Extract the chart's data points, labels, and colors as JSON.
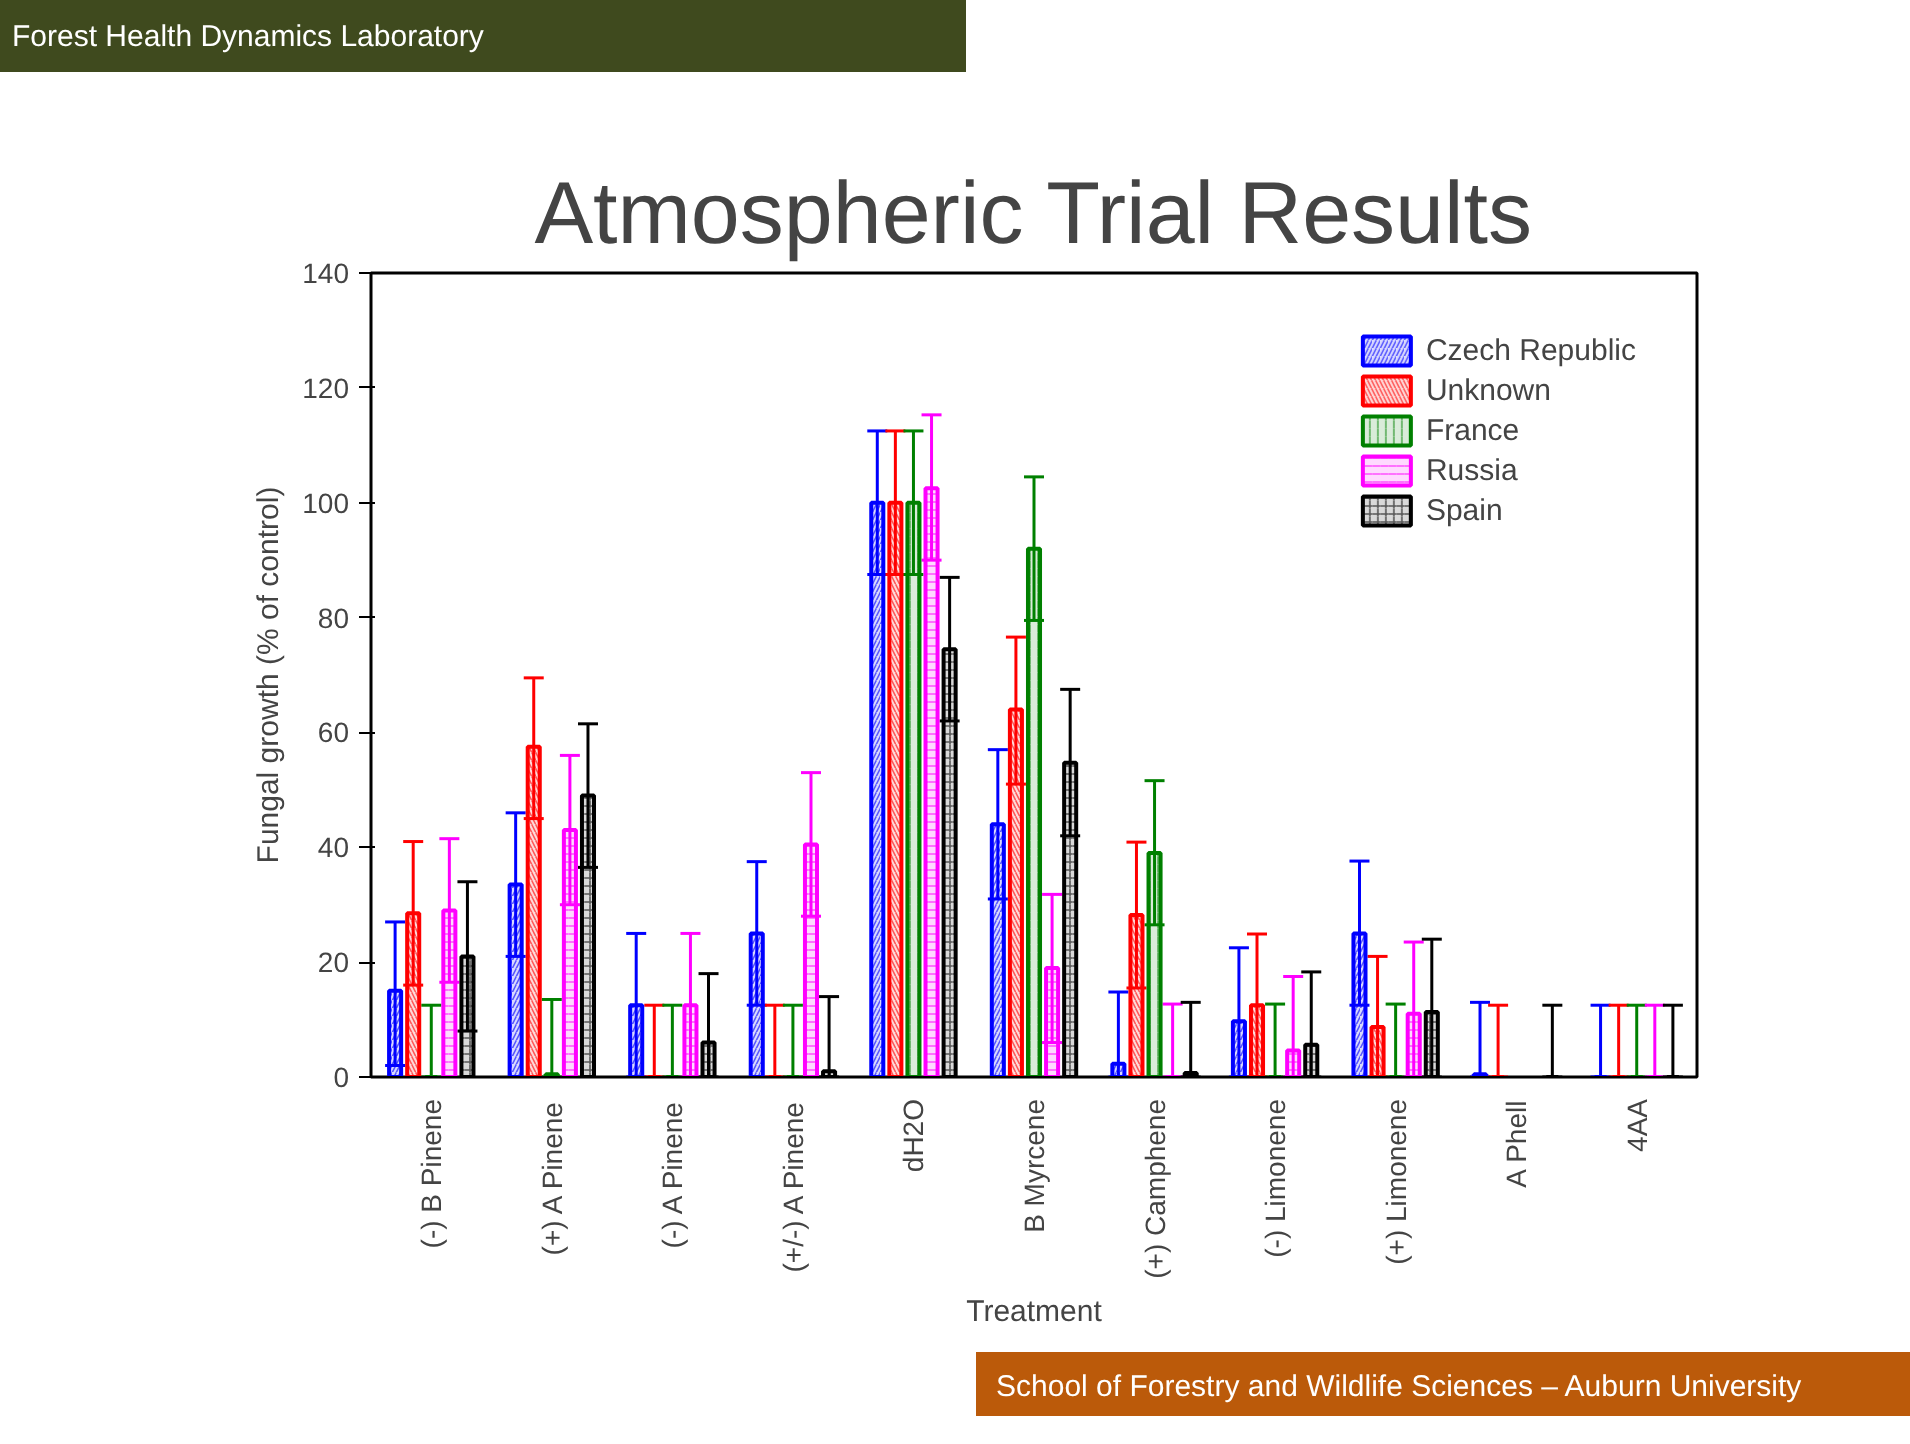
{
  "chart_data": {
    "type": "bar",
    "title": "Atmospheric Trial Results",
    "xlabel": "Treatment",
    "ylabel": "Fungal growth (% of control)",
    "annotations": [
      "Forest Health Dynamics Laboratory",
      "School of Forestry and Wildlife Sciences – Auburn University"
    ],
    "categories": [
      "(-) B Pinene",
      "(+) A Pinene",
      "(-) A Pinene",
      "(+/-) A Pinene",
      "dH2O",
      "B Myrcene",
      "(+) Camphene",
      "(-) Limonene",
      "(+) Limonene",
      "A Phell",
      "4AA"
    ],
    "ylim": [
      0,
      140
    ],
    "yticks": [
      0,
      20,
      40,
      60,
      80,
      100,
      120,
      140
    ],
    "grid": false,
    "legend": "top right",
    "series": [
      {
        "name": "Czech Republic",
        "color": "#0000ff",
        "values": [
          15,
          33.5,
          12.5,
          25,
          100,
          44,
          2.3,
          9.7,
          25,
          0.5,
          0
        ],
        "errors": [
          [
            2,
            27
          ],
          [
            21,
            46
          ],
          [
            0,
            25
          ],
          [
            12.5,
            37.5
          ],
          [
            87.5,
            112.5
          ],
          [
            31,
            57
          ],
          [
            0,
            14.8
          ],
          [
            0,
            22.5
          ],
          [
            12.5,
            37.6
          ],
          [
            0,
            13
          ],
          [
            0,
            12.5
          ]
        ]
      },
      {
        "name": "Unknown",
        "color": "#ff0000",
        "values": [
          28.5,
          57.5,
          0,
          0,
          100,
          64,
          28.2,
          12.5,
          8.7,
          0,
          0
        ],
        "errors": [
          [
            16,
            41
          ],
          [
            45,
            69.5
          ],
          [
            0,
            12.5
          ],
          [
            0,
            12.5
          ],
          [
            87.5,
            112.5
          ],
          [
            51,
            76.6
          ],
          [
            15.5,
            40.9
          ],
          [
            0,
            24.9
          ],
          [
            0,
            21
          ],
          [
            0,
            12.5
          ],
          [
            0,
            12.5
          ]
        ]
      },
      {
        "name": "France",
        "color": "#008000",
        "values": [
          0,
          0.5,
          0,
          0,
          100,
          92,
          39,
          0,
          0,
          null,
          0
        ],
        "errors": [
          [
            0,
            12.5
          ],
          [
            0,
            13.5
          ],
          [
            0,
            12.5
          ],
          [
            0,
            12.5
          ],
          [
            87.5,
            112.5
          ],
          [
            79.5,
            104.5
          ],
          [
            26.5,
            51.6
          ],
          [
            0,
            12.7
          ],
          [
            0,
            12.7
          ],
          null,
          [
            0,
            12.5
          ]
        ]
      },
      {
        "name": "Russia",
        "color": "#ff00ff",
        "values": [
          29,
          43,
          12.5,
          40.5,
          102.5,
          19,
          0,
          4.6,
          11,
          null,
          0
        ],
        "errors": [
          [
            16.5,
            41.5
          ],
          [
            30,
            56
          ],
          [
            0,
            25
          ],
          [
            28,
            53
          ],
          [
            90,
            115.3
          ],
          [
            6,
            31.8
          ],
          [
            0,
            12.7
          ],
          [
            0,
            17.5
          ],
          [
            0,
            23.5
          ],
          null,
          [
            0,
            12.5
          ]
        ]
      },
      {
        "name": "Spain",
        "color": "#000000",
        "values": [
          21,
          49,
          6,
          1,
          74.5,
          54.7,
          0.7,
          5.6,
          11.3,
          0,
          0
        ],
        "errors": [
          [
            8,
            34
          ],
          [
            36.5,
            61.5
          ],
          [
            0,
            18
          ],
          [
            0,
            14
          ],
          [
            62,
            87
          ],
          [
            42,
            67.5
          ],
          [
            0,
            13
          ],
          [
            0,
            18.3
          ],
          [
            0,
            24
          ],
          [
            0,
            12.5
          ],
          [
            0,
            12.5
          ]
        ]
      }
    ]
  }
}
